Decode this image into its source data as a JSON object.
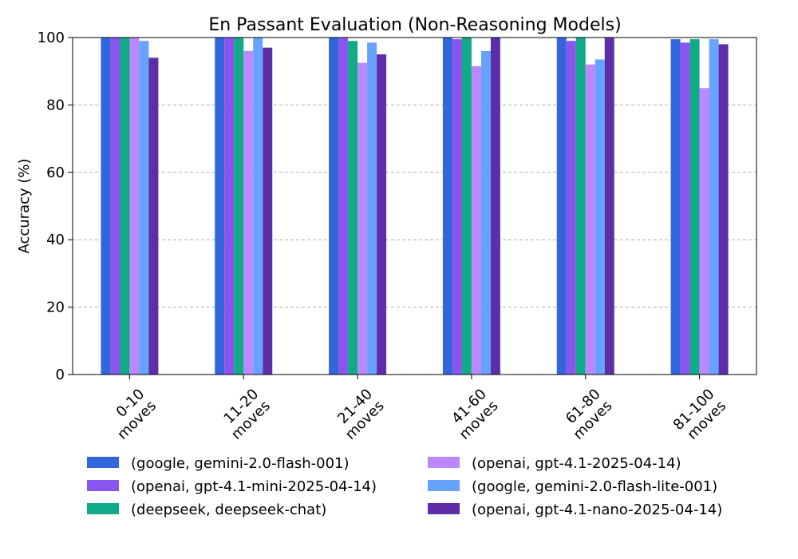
{
  "chart_data": {
    "type": "bar",
    "title": "En Passant Evaluation (Non-Reasoning Models)",
    "xlabel": "",
    "ylabel": "Accuracy (%)",
    "ylim": [
      0,
      100
    ],
    "yticks": [
      0,
      20,
      40,
      60,
      80,
      100
    ],
    "grid": "y-dashed",
    "legend_position": "bottom",
    "categories": [
      "0-10 moves",
      "11-20 moves",
      "21-40 moves",
      "41-60 moves",
      "61-80 moves",
      "81-100 moves"
    ],
    "category_lines": [
      [
        "0-10",
        "moves"
      ],
      [
        "11-20",
        "moves"
      ],
      [
        "21-40",
        "moves"
      ],
      [
        "41-60",
        "moves"
      ],
      [
        "61-80",
        "moves"
      ],
      [
        "81-100",
        "moves"
      ]
    ],
    "series": [
      {
        "name": "(google, gemini-2.0-flash-001)",
        "color": "#3366dd",
        "values": [
          100,
          100,
          100,
          100,
          100,
          99.5
        ]
      },
      {
        "name": "(openai, gpt-4.1-mini-2025-04-14)",
        "color": "#8855ee",
        "values": [
          100,
          100,
          100,
          99.5,
          99,
          98.5
        ]
      },
      {
        "name": "(deepseek, deepseek-chat)",
        "color": "#11aa88",
        "values": [
          100,
          100,
          99,
          100,
          100,
          99.5
        ]
      },
      {
        "name": "(openai, gpt-4.1-2025-04-14)",
        "color": "#bb88ff",
        "values": [
          100,
          96,
          92.5,
          91.5,
          92,
          85
        ]
      },
      {
        "name": "(google, gemini-2.0-flash-lite-001)",
        "color": "#66a3ff",
        "values": [
          99,
          100,
          98.5,
          96,
          93.5,
          99.5
        ]
      },
      {
        "name": "(openai, gpt-4.1-nano-2025-04-14)",
        "color": "#5e2ea8",
        "values": [
          94,
          97,
          95,
          100,
          100,
          98
        ]
      }
    ]
  }
}
